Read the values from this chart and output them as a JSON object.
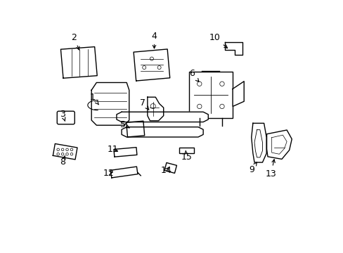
{
  "background_color": "#ffffff",
  "line_color": "#000000",
  "label_color": "#000000",
  "figsize": [
    4.89,
    3.6
  ],
  "dpi": 100,
  "label_positions": {
    "2": [
      0.11,
      0.855,
      0.135,
      0.795
    ],
    "4": [
      0.43,
      0.86,
      0.43,
      0.8
    ],
    "10": [
      0.67,
      0.855,
      0.73,
      0.805
    ],
    "6": [
      0.58,
      0.71,
      0.615,
      0.67
    ],
    "1": [
      0.185,
      0.615,
      0.215,
      0.58
    ],
    "3": [
      0.065,
      0.548,
      0.075,
      0.52
    ],
    "7": [
      0.385,
      0.595,
      0.41,
      0.565
    ],
    "5": [
      0.305,
      0.508,
      0.34,
      0.49
    ],
    "8": [
      0.065,
      0.358,
      0.075,
      0.385
    ],
    "11": [
      0.266,
      0.408,
      0.295,
      0.398
    ],
    "12": [
      0.248,
      0.315,
      0.275,
      0.32
    ],
    "14": [
      0.478,
      0.325,
      0.495,
      0.345
    ],
    "15": [
      0.558,
      0.378,
      0.555,
      0.405
    ],
    "9": [
      0.818,
      0.328,
      0.84,
      0.36
    ],
    "13": [
      0.895,
      0.312,
      0.91,
      0.38
    ]
  }
}
